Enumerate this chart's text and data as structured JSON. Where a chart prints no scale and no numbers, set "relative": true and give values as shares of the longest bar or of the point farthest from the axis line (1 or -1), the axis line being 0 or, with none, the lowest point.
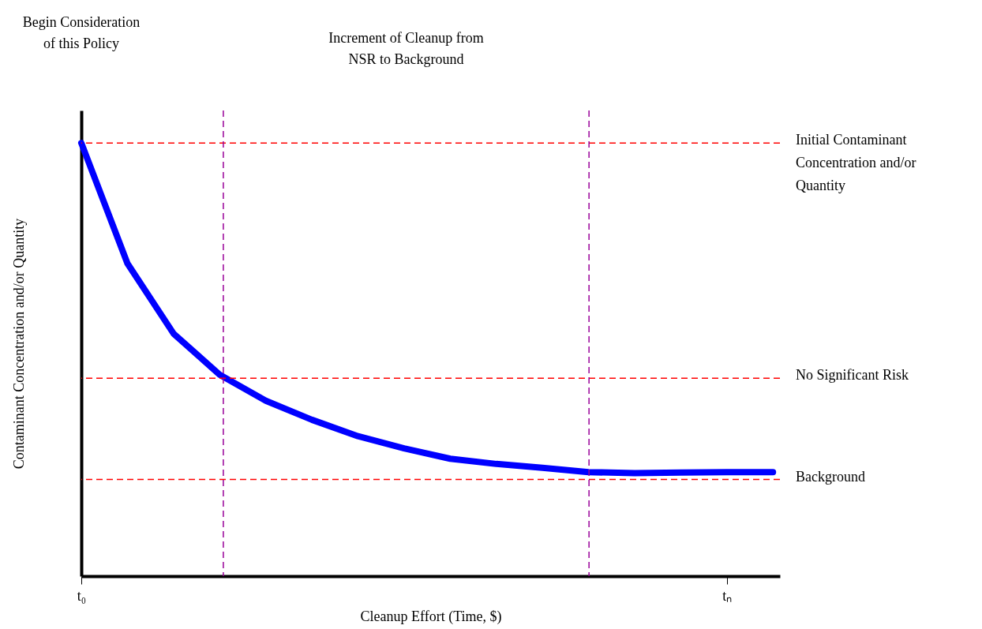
{
  "chart_data": {
    "type": "line",
    "relative": true,
    "xlabel": "Cleanup Effort (Time, $)",
    "ylabel": "Contaminant Concentration and/or Quantity",
    "categories": [
      "t₀",
      null,
      null,
      null,
      null,
      null,
      null,
      null,
      null,
      null,
      null,
      null,
      null,
      null,
      "tₙ",
      null
    ],
    "series": [
      {
        "color": "#0000ff",
        "values": [
          1.0,
          0.722,
          0.56,
          0.465,
          0.405,
          0.361,
          0.323,
          0.295,
          0.271,
          0.259,
          0.25,
          0.24,
          0.238,
          0.239,
          0.24,
          0.24
        ]
      }
    ],
    "ref_lines": [
      {
        "axis": "y",
        "value": 1.0,
        "label": "Initial Contaminant Concentration and/or Quantity",
        "color": "#ff0000",
        "line_style": "dashed"
      },
      {
        "axis": "y",
        "value": 0.457,
        "label": "No Significant Risk",
        "color": "#ff0000",
        "line_style": "dashed"
      },
      {
        "axis": "y",
        "value": 0.223,
        "label": "Background",
        "color": "#ff0000",
        "line_style": "dashed"
      }
    ],
    "annotations": [
      "Begin Consideration of this Policy",
      "Increment of Cleanup from NSR to Background"
    ],
    "grid": false,
    "marker": "none",
    "line_style": "solid"
  }
}
